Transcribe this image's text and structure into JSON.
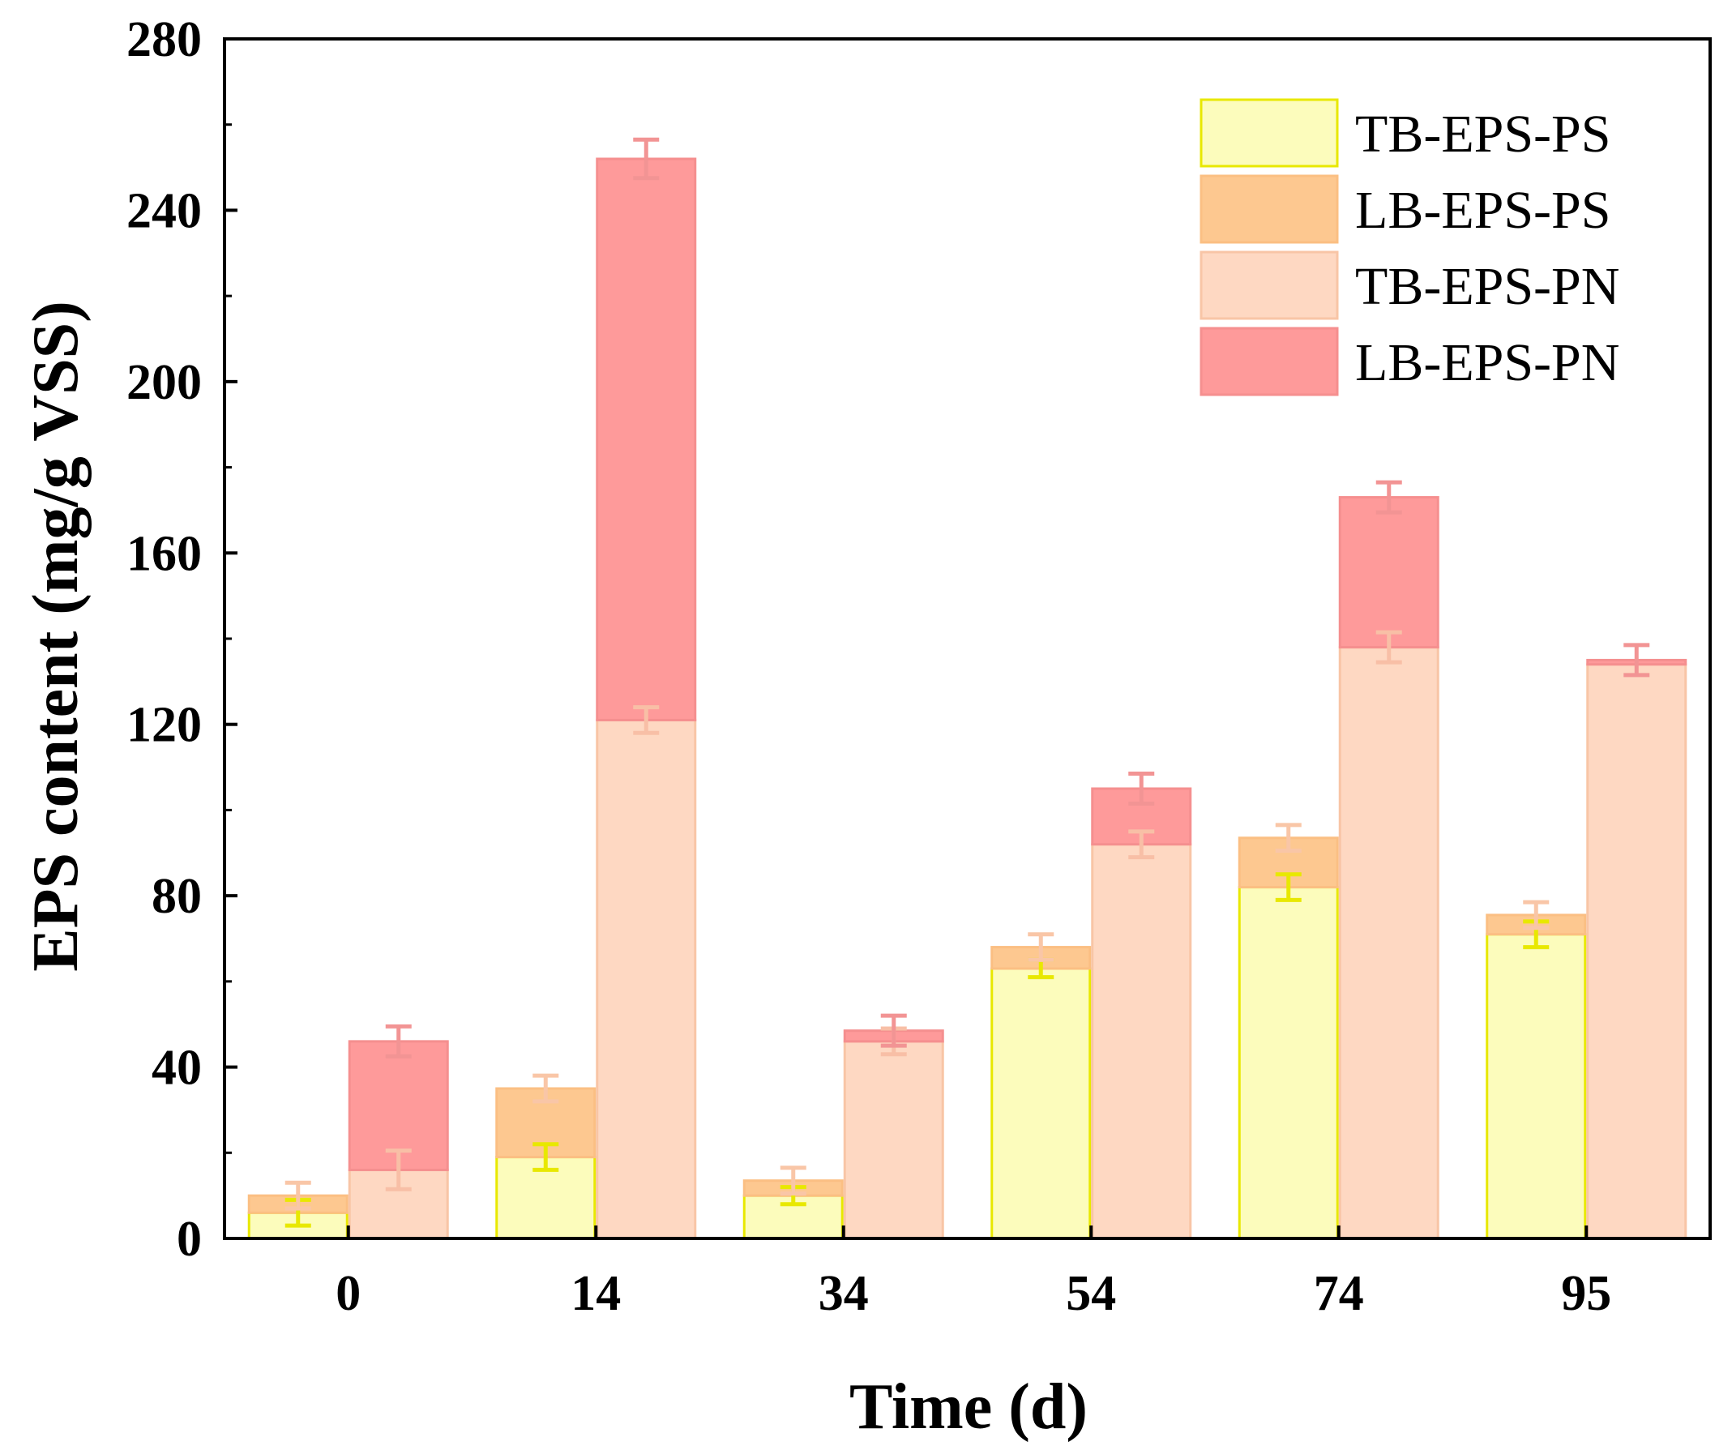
{
  "chart_data": {
    "type": "bar",
    "subtype": "grouped-stacked",
    "title": "",
    "xlabel": "Time (d)",
    "ylabel": "EPS content (mg/g VSS)",
    "ylim": [
      0,
      280
    ],
    "yticks": [
      0,
      40,
      80,
      120,
      160,
      200,
      240,
      280
    ],
    "categories": [
      "0",
      "14",
      "34",
      "54",
      "74",
      "95"
    ],
    "stacks": [
      {
        "name": "PS",
        "series": [
          {
            "name": "TB-EPS-PS",
            "values": [
              6,
              19,
              10,
              63,
              82,
              71
            ],
            "errors": [
              3,
              3,
              2,
              2,
              3,
              3
            ],
            "color": "#fcfcbc",
            "edge": "#e8e800",
            "errColor": "#e8e800"
          },
          {
            "name": "LB-EPS-PS",
            "values": [
              4,
              16,
              3.5,
              5,
              11.5,
              4.5
            ],
            "errors": [
              3,
              3,
              3,
              3,
              3,
              3
            ],
            "color": "#fdc890",
            "edge": "#fbbf83",
            "errColor": "#f9c6a7"
          }
        ]
      },
      {
        "name": "PN",
        "series": [
          {
            "name": "TB-EPS-PN",
            "values": [
              16,
              121,
              46,
              92,
              138,
              134
            ],
            "errors": [
              4.5,
              3,
              3,
              3,
              3.5,
              0
            ],
            "color": "#fed8c2",
            "edge": "#f8c5a6",
            "errColor": "#f8bfa6"
          },
          {
            "name": "LB-EPS-PN",
            "values": [
              30,
              131,
              2.5,
              13,
              35,
              1
            ],
            "errors": [
              3.5,
              4.5,
              3.5,
              3.5,
              3.5,
              3.5
            ],
            "color": "#fe9a9a",
            "edge": "#f58f8f",
            "errColor": "#f29494"
          }
        ]
      }
    ],
    "legend": {
      "position": "top-right",
      "entries": [
        "TB-EPS-PS",
        "LB-EPS-PS",
        "TB-EPS-PN",
        "LB-EPS-PN"
      ]
    }
  }
}
